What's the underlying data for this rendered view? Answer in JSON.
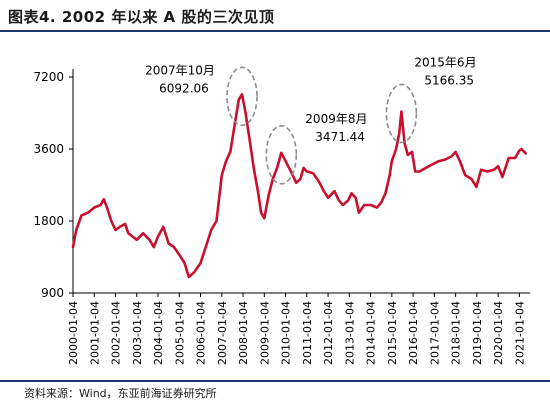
{
  "figure": {
    "title": "图表4.    2002 年以来 A 股的三次见顶",
    "source": "资料来源：Wind，东亚前海证券研究所"
  },
  "colors": {
    "line": "#c8102e",
    "ellipse": "#8c8c8c",
    "rule": "#1f3a6e",
    "axis": "#000000"
  },
  "chart_data": {
    "type": "line",
    "title": "",
    "xlabel": "",
    "ylabel": "",
    "y_scale": "log",
    "ylim": [
      900,
      7200
    ],
    "yticks": [
      900,
      1800,
      3600,
      7200
    ],
    "grid": false,
    "legend": "none",
    "xlim": [
      2000.0,
      2021.5
    ],
    "xtick_labels": [
      "2000-01-04",
      "2001-01-04",
      "2002-01-04",
      "2003-01-04",
      "2004-01-04",
      "2005-01-04",
      "2006-01-04",
      "2007-01-04",
      "2008-01-04",
      "2009-01-04",
      "2010-01-04",
      "2011-01-04",
      "2012-01-04",
      "2013-01-04",
      "2014-01-04",
      "2015-01-04",
      "2016-01-04",
      "2017-01-04",
      "2018-01-04",
      "2019-01-04",
      "2020-01-04",
      "2021-01-04"
    ],
    "series": [
      {
        "x": [
          2000.0,
          2000.15,
          2000.4,
          2000.7,
          2001.0,
          2001.3,
          2001.45,
          2001.6,
          2001.8,
          2002.0,
          2002.2,
          2002.45,
          2002.6,
          2002.8,
          2003.0,
          2003.3,
          2003.6,
          2003.8,
          2004.0,
          2004.25,
          2004.5,
          2004.75,
          2005.0,
          2005.25,
          2005.45,
          2005.7,
          2006.0,
          2006.3,
          2006.5,
          2006.75,
          2007.0,
          2007.2,
          2007.4,
          2007.6,
          2007.8,
          2007.95,
          2008.1,
          2008.3,
          2008.5,
          2008.7,
          2008.85,
          2009.0,
          2009.2,
          2009.4,
          2009.6,
          2009.8,
          2010.0,
          2010.25,
          2010.5,
          2010.7,
          2010.85,
          2011.0,
          2011.3,
          2011.6,
          2011.8,
          2012.0,
          2012.3,
          2012.5,
          2012.7,
          2012.95,
          2013.1,
          2013.3,
          2013.45,
          2013.7,
          2014.0,
          2014.3,
          2014.5,
          2014.7,
          2014.9,
          2015.0,
          2015.2,
          2015.35,
          2015.45,
          2015.6,
          2015.75,
          2015.95,
          2016.1,
          2016.3,
          2016.6,
          2016.9,
          2017.2,
          2017.5,
          2017.8,
          2018.0,
          2018.2,
          2018.45,
          2018.75,
          2018.98,
          2019.2,
          2019.5,
          2019.8,
          2020.0,
          2020.2,
          2020.5,
          2020.8,
          2021.0,
          2021.1,
          2021.3
        ],
        "values": [
          1400,
          1650,
          1900,
          1950,
          2050,
          2100,
          2220,
          2050,
          1800,
          1650,
          1700,
          1750,
          1600,
          1550,
          1500,
          1600,
          1500,
          1400,
          1550,
          1700,
          1450,
          1400,
          1300,
          1200,
          1050,
          1100,
          1200,
          1450,
          1650,
          1800,
          2800,
          3200,
          3500,
          4500,
          5800,
          6092.06,
          5200,
          4000,
          3000,
          2400,
          1950,
          1850,
          2300,
          2700,
          3000,
          3471.44,
          3200,
          2900,
          2600,
          2700,
          3000,
          2900,
          2850,
          2600,
          2400,
          2250,
          2400,
          2200,
          2100,
          2200,
          2350,
          2250,
          1950,
          2100,
          2100,
          2050,
          2150,
          2350,
          2800,
          3200,
          3600,
          4200,
          5166.35,
          3800,
          3400,
          3500,
          2900,
          2900,
          3000,
          3100,
          3200,
          3250,
          3350,
          3500,
          3200,
          2800,
          2700,
          2500,
          2950,
          2900,
          2950,
          3050,
          2750,
          3300,
          3300,
          3550,
          3600,
          3450
        ]
      }
    ],
    "annotations": [
      {
        "label_line1": "2007年10月",
        "label_line2": "6092.06",
        "x": 2007.95,
        "y": 6092.06
      },
      {
        "label_line1": "2009年8月",
        "label_line2": "3471.44",
        "x": 2009.8,
        "y": 3471.44
      },
      {
        "label_line1": "2015年6月",
        "label_line2": "5166.35",
        "x": 2015.45,
        "y": 5166.35
      }
    ]
  }
}
